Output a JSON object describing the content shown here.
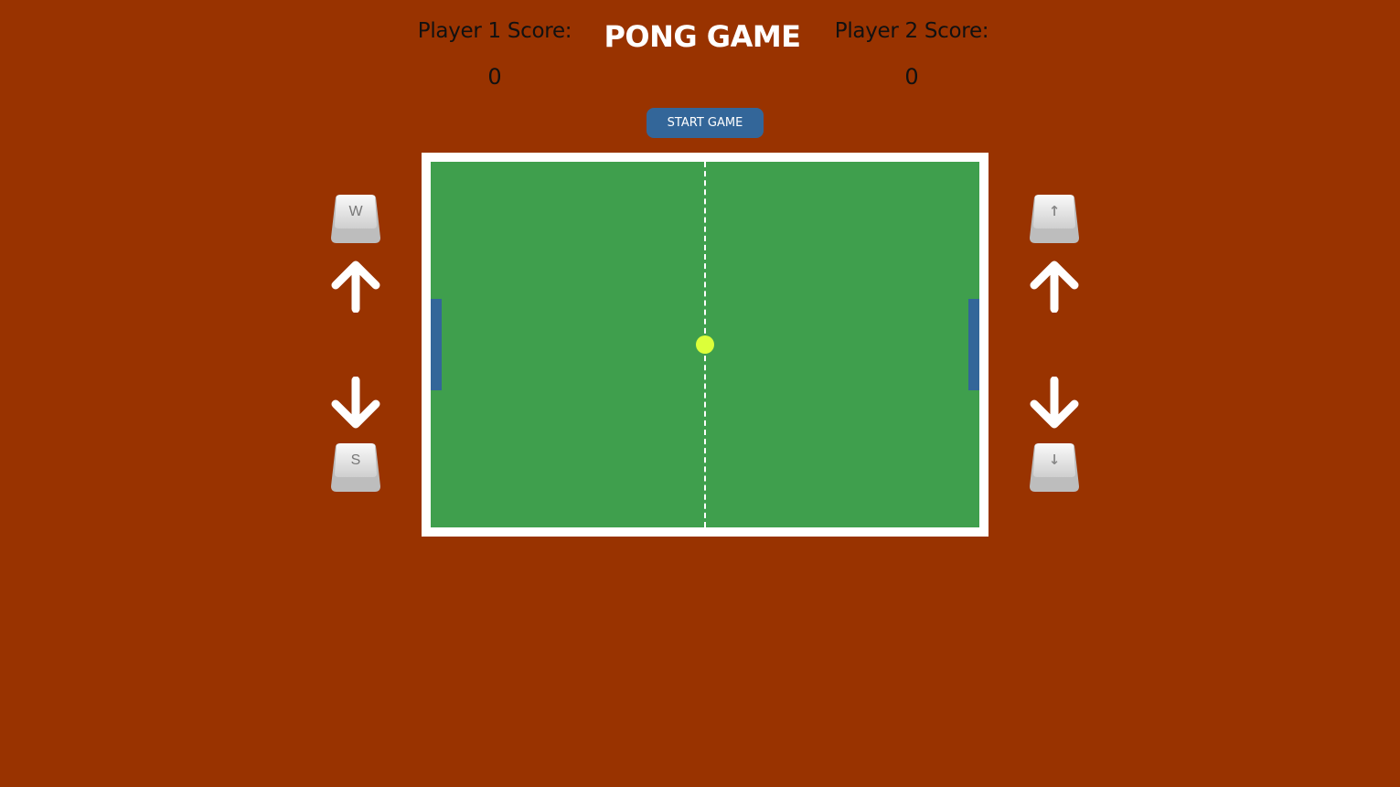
{
  "title": "PONG GAME",
  "player1": {
    "label": "Player 1 Score:",
    "score": "0"
  },
  "player2": {
    "label": "Player 2 Score:",
    "score": "0"
  },
  "start_button": {
    "label": "START GAME"
  },
  "controls": {
    "player1": {
      "up_key": "W",
      "down_key": "S",
      "up_icon": "arrow-up-icon",
      "down_icon": "arrow-down-icon"
    },
    "player2": {
      "up_key": "↑",
      "down_key": "↓",
      "up_icon": "arrow-up-icon",
      "down_icon": "arrow-down-icon"
    }
  },
  "colors": {
    "background": "#993300",
    "field": "#3f9f4d",
    "field_border": "#ffffff",
    "paddle": "#336699",
    "ball": "#dcff3a",
    "button": "#336699"
  }
}
